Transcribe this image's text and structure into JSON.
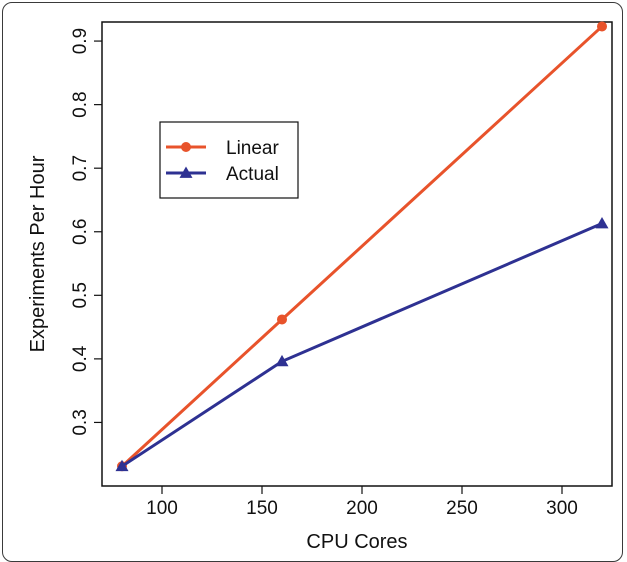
{
  "chart_data": {
    "type": "line",
    "title": "",
    "xlabel": "CPU Cores",
    "ylabel": "Experiments Per Hour",
    "xlim": [
      70,
      325
    ],
    "ylim": [
      0.2,
      0.93
    ],
    "xticks": [
      100,
      150,
      200,
      250,
      300
    ],
    "yticks": [
      0.3,
      0.4,
      0.5,
      0.6,
      0.7,
      0.8,
      0.9
    ],
    "grid": false,
    "legend_position": "upper-left (inside plot)",
    "series": [
      {
        "name": "Linear",
        "color": "#e8532b",
        "marker": "circle",
        "x": [
          80,
          160,
          320
        ],
        "y": [
          0.231,
          0.462,
          0.923
        ]
      },
      {
        "name": "Actual",
        "color": "#2e3192",
        "marker": "triangle",
        "x": [
          80,
          160,
          320
        ],
        "y": [
          0.231,
          0.396,
          0.613
        ]
      }
    ]
  }
}
